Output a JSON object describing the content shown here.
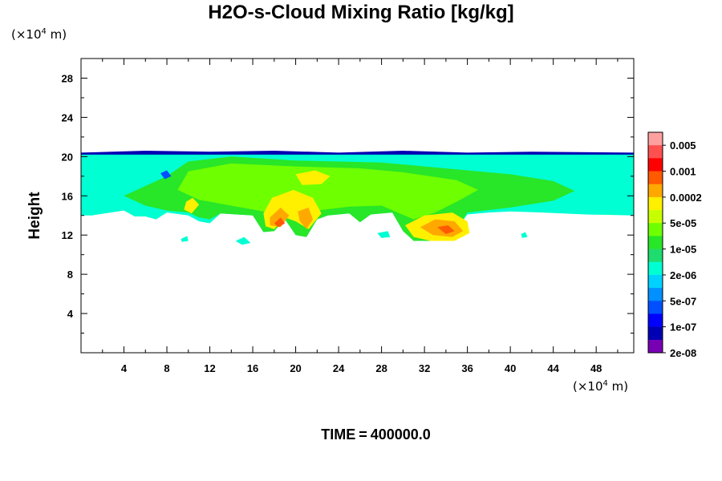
{
  "chart_data": {
    "type": "heatmap",
    "title": "H2O-s-Cloud Mixing Ratio [kg/kg]",
    "xlabel": "",
    "ylabel": "Height",
    "x_unit": {
      "prefix": "(×10",
      "exp": "4",
      "suffix": " m)"
    },
    "y_unit": {
      "prefix": "(×10",
      "exp": "4",
      "suffix": " m)"
    },
    "xlim": [
      0,
      51.5
    ],
    "ylim": [
      0,
      30
    ],
    "x_ticks": [
      4,
      8,
      12,
      16,
      20,
      24,
      28,
      32,
      36,
      40,
      44,
      48
    ],
    "y_ticks": [
      4,
      8,
      12,
      16,
      20,
      24,
      28
    ],
    "colorbar": {
      "colors": [
        "#ffa0a0",
        "#ff5050",
        "#ff0000",
        "#ff5a00",
        "#ffa800",
        "#fff000",
        "#c8ff00",
        "#6eff00",
        "#28e628",
        "#1edc6e",
        "#00ffd2",
        "#00d2ff",
        "#0090ff",
        "#0050ff",
        "#0000ff",
        "#0000b4",
        "#7800b4"
      ],
      "labels": [
        "0.005",
        "0.001",
        "0.0002",
        "5e-05",
        "1e-05",
        "2e-06",
        "5e-07",
        "1e-07",
        "2e-08"
      ]
    },
    "regions": [
      {
        "level": 15,
        "points": [
          [
            0,
            20.4
          ],
          [
            6,
            20.6
          ],
          [
            12,
            20.5
          ],
          [
            18,
            20.6
          ],
          [
            24,
            20.4
          ],
          [
            30,
            20.6
          ],
          [
            36,
            20.4
          ],
          [
            42,
            20.5
          ],
          [
            51.5,
            20.4
          ],
          [
            51.5,
            20.0
          ],
          [
            0,
            20.0
          ]
        ]
      },
      {
        "level": 10,
        "points": [
          [
            0,
            20.2
          ],
          [
            51.5,
            20.2
          ],
          [
            51.5,
            14.0
          ],
          [
            47,
            14.1
          ],
          [
            43,
            14.3
          ],
          [
            40,
            14.4
          ],
          [
            38,
            14.3
          ],
          [
            36,
            14.1
          ],
          [
            35,
            12.6
          ],
          [
            33,
            11.4
          ],
          [
            31,
            11.4
          ],
          [
            30,
            12.4
          ],
          [
            29,
            14.3
          ],
          [
            27,
            14.1
          ],
          [
            26,
            13.3
          ],
          [
            25,
            14.2
          ],
          [
            23,
            14.0
          ],
          [
            22,
            13.6
          ],
          [
            21,
            11.8
          ],
          [
            20,
            12.0
          ],
          [
            19,
            13.6
          ],
          [
            18,
            12.4
          ],
          [
            17,
            12.3
          ],
          [
            16,
            14.0
          ],
          [
            13,
            14.2
          ],
          [
            12,
            13.2
          ],
          [
            11,
            13.4
          ],
          [
            10,
            14.0
          ],
          [
            8,
            14.3
          ],
          [
            7,
            13.6
          ],
          [
            6,
            13.9
          ],
          [
            5,
            13.9
          ],
          [
            4,
            14.5
          ],
          [
            1,
            14.0
          ],
          [
            0,
            14.0
          ]
        ]
      },
      {
        "level": 8,
        "points": [
          [
            4,
            16
          ],
          [
            8,
            18
          ],
          [
            10,
            19.5
          ],
          [
            14,
            20
          ],
          [
            20,
            19.6
          ],
          [
            28,
            19.4
          ],
          [
            32,
            19
          ],
          [
            36,
            18.6
          ],
          [
            40,
            18.2
          ],
          [
            44,
            17.5
          ],
          [
            46,
            16.5
          ],
          [
            44,
            15.5
          ],
          [
            40,
            14.8
          ],
          [
            36,
            14.3
          ],
          [
            35,
            12.6
          ],
          [
            33,
            11.4
          ],
          [
            31,
            11.4
          ],
          [
            30,
            12.4
          ],
          [
            29,
            14.3
          ],
          [
            27,
            14.1
          ],
          [
            26,
            13.3
          ],
          [
            25,
            14.2
          ],
          [
            23,
            14.0
          ],
          [
            22,
            13.6
          ],
          [
            21,
            11.8
          ],
          [
            20,
            12.0
          ],
          [
            19,
            13.6
          ],
          [
            18,
            12.4
          ],
          [
            17,
            12.3
          ],
          [
            16,
            14.0
          ],
          [
            13,
            14.2
          ],
          [
            12,
            13.6
          ],
          [
            11,
            13.8
          ],
          [
            10,
            14.3
          ],
          [
            8,
            14.5
          ],
          [
            6,
            15
          ],
          [
            5,
            15.5
          ]
        ]
      },
      {
        "level": 7,
        "points": [
          [
            10,
            18.5
          ],
          [
            14,
            19.3
          ],
          [
            20,
            19
          ],
          [
            26,
            18.8
          ],
          [
            30,
            18.4
          ],
          [
            35,
            17.6
          ],
          [
            37,
            16.6
          ],
          [
            35,
            15.4
          ],
          [
            33,
            14.3
          ],
          [
            31,
            13.6
          ],
          [
            28,
            15
          ],
          [
            25,
            14.9
          ],
          [
            22,
            14.5
          ],
          [
            20,
            14.6
          ],
          [
            18,
            14.2
          ],
          [
            16,
            14.6
          ],
          [
            13,
            15.2
          ],
          [
            11,
            15.6
          ],
          [
            9,
            16.6
          ]
        ]
      },
      {
        "level": 5,
        "points": [
          [
            20,
            18.2
          ],
          [
            21.8,
            18.6
          ],
          [
            23.2,
            18.0
          ],
          [
            22.4,
            17.2
          ],
          [
            20.6,
            17.1
          ]
        ]
      },
      {
        "level": 5,
        "points": [
          [
            17.8,
            15.8
          ],
          [
            19.8,
            16.6
          ],
          [
            21.6,
            15.8
          ],
          [
            22.4,
            14.2
          ],
          [
            21.2,
            12.6
          ],
          [
            20.0,
            13.4
          ],
          [
            19.0,
            13.8
          ],
          [
            18.0,
            12.6
          ],
          [
            17.2,
            12.9
          ],
          [
            17.0,
            14.2
          ]
        ]
      },
      {
        "level": 5,
        "points": [
          [
            30.2,
            13.0
          ],
          [
            32.0,
            14.0
          ],
          [
            34.6,
            14.3
          ],
          [
            36.0,
            13.4
          ],
          [
            36.2,
            12.2
          ],
          [
            34.8,
            11.4
          ],
          [
            32.6,
            11.4
          ],
          [
            31.0,
            11.8
          ]
        ]
      },
      {
        "level": 5,
        "points": [
          [
            9.8,
            15.4
          ],
          [
            10.4,
            15.8
          ],
          [
            11.0,
            15.1
          ],
          [
            10.3,
            14.2
          ],
          [
            9.6,
            14.6
          ]
        ]
      },
      {
        "level": 4,
        "points": [
          [
            17.6,
            13.8
          ],
          [
            18.6,
            14.8
          ],
          [
            19.4,
            14.0
          ],
          [
            18.6,
            12.8
          ],
          [
            17.6,
            13.0
          ]
        ]
      },
      {
        "level": 4,
        "points": [
          [
            20.2,
            14.4
          ],
          [
            21.2,
            14.8
          ],
          [
            21.6,
            13.6
          ],
          [
            21.0,
            12.6
          ],
          [
            20.4,
            13.4
          ]
        ]
      },
      {
        "level": 4,
        "points": [
          [
            31.6,
            12.8
          ],
          [
            33.0,
            13.6
          ],
          [
            34.8,
            13.4
          ],
          [
            35.6,
            12.4
          ],
          [
            34.6,
            11.8
          ],
          [
            32.8,
            12.0
          ]
        ]
      },
      {
        "level": 3,
        "points": [
          [
            18.0,
            13.2
          ],
          [
            18.6,
            13.8
          ],
          [
            19.0,
            13.2
          ],
          [
            18.4,
            12.8
          ]
        ]
      },
      {
        "level": 3,
        "points": [
          [
            33.2,
            12.8
          ],
          [
            34.2,
            13.0
          ],
          [
            34.8,
            12.4
          ],
          [
            34.0,
            12.1
          ]
        ]
      },
      {
        "level": 10,
        "points": [
          [
            9.3,
            11.6
          ],
          [
            9.9,
            11.9
          ],
          [
            10.0,
            11.4
          ],
          [
            9.4,
            11.3
          ]
        ]
      },
      {
        "level": 10,
        "points": [
          [
            14.4,
            11.4
          ],
          [
            15.2,
            11.8
          ],
          [
            15.8,
            11.2
          ],
          [
            15.0,
            11.0
          ]
        ]
      },
      {
        "level": 10,
        "points": [
          [
            27.6,
            12.2
          ],
          [
            28.6,
            12.4
          ],
          [
            28.8,
            11.8
          ],
          [
            28.0,
            11.7
          ]
        ]
      },
      {
        "level": 10,
        "points": [
          [
            41.0,
            12.1
          ],
          [
            41.4,
            12.3
          ],
          [
            41.6,
            11.8
          ],
          [
            41.1,
            11.7
          ]
        ]
      },
      {
        "level": 13,
        "points": [
          [
            7.4,
            18.3
          ],
          [
            8.0,
            18.6
          ],
          [
            8.4,
            18.0
          ],
          [
            7.8,
            17.7
          ]
        ]
      }
    ],
    "legend": "right",
    "grid": false
  },
  "footer": {
    "label": "TIME",
    "eq": "=",
    "value": "400000.0"
  }
}
